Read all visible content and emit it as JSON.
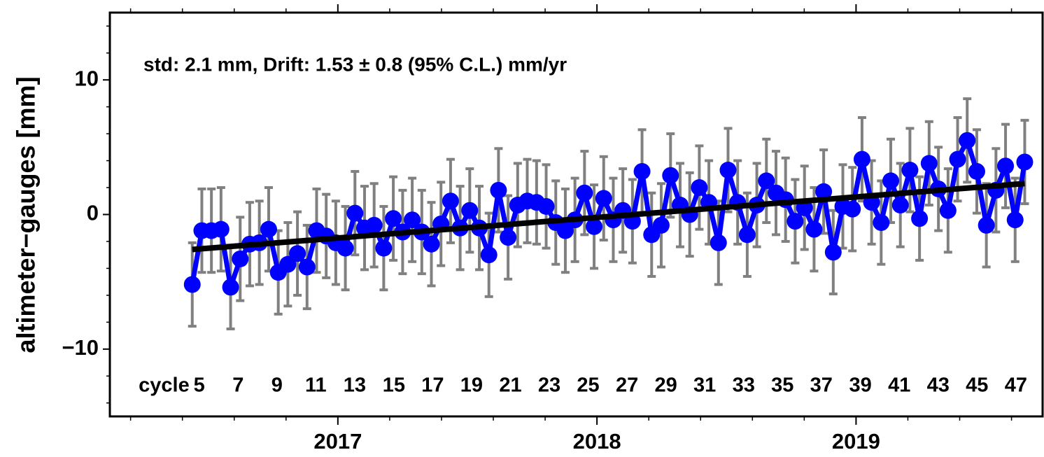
{
  "chart_data": {
    "type": "line",
    "annotation": "std: 2.1 mm,  Drift: 1.53 ±  0.8 (95% C.L.) mm/yr",
    "y_label": "altimeter−gauges [mm]",
    "xlim": [
      2016.12,
      2019.72
    ],
    "xticks": [
      2017,
      2018,
      2019
    ],
    "x_minor_ticks": [
      2016.2,
      2016.4,
      2016.6,
      2016.8,
      2017.2,
      2017.4,
      2017.6,
      2017.8,
      2018.2,
      2018.4,
      2018.6,
      2018.8,
      2019.2,
      2019.4,
      2019.6
    ],
    "ylim": [
      -15,
      15
    ],
    "yticks": [
      10,
      0,
      {
        "value": -10,
        "label": "−10"
      }
    ],
    "y_minor_ticks": [
      -14,
      -12,
      -8,
      -6,
      -4,
      -2,
      2,
      4,
      6,
      8,
      12,
      14
    ],
    "grid": false,
    "x": [
      2016.438,
      2016.475,
      2016.512,
      2016.549,
      2016.586,
      2016.623,
      2016.66,
      2016.697,
      2016.733,
      2016.77,
      2016.807,
      2016.844,
      2016.881,
      2016.918,
      2016.955,
      2016.992,
      2017.029,
      2017.066,
      2017.103,
      2017.14,
      2017.177,
      2017.214,
      2017.25,
      2017.287,
      2017.324,
      2017.361,
      2017.398,
      2017.435,
      2017.472,
      2017.509,
      2017.546,
      2017.583,
      2017.62,
      2017.657,
      2017.694,
      2017.731,
      2017.767,
      2017.804,
      2017.841,
      2017.878,
      2017.915,
      2017.952,
      2017.989,
      2018.026,
      2018.063,
      2018.1,
      2018.137,
      2018.174,
      2018.211,
      2018.248,
      2018.284,
      2018.321,
      2018.358,
      2018.395,
      2018.432,
      2018.469,
      2018.506,
      2018.543,
      2018.58,
      2018.617,
      2018.654,
      2018.691,
      2018.728,
      2018.765,
      2018.801,
      2018.838,
      2018.875,
      2018.912,
      2018.949,
      2018.986,
      2019.023,
      2019.06,
      2019.097,
      2019.134,
      2019.171,
      2019.208,
      2019.245,
      2019.282,
      2019.318,
      2019.355,
      2019.392,
      2019.429,
      2019.466,
      2019.503,
      2019.54,
      2019.577,
      2019.614,
      2019.651
    ],
    "series": [
      {
        "color": "#0000ff",
        "error_color": "#808080",
        "values": [
          -5.2,
          -1.2,
          -1.2,
          -1.1,
          -5.4,
          -3.3,
          -2.2,
          -2.1,
          -1.1,
          -4.3,
          -3.7,
          -2.9,
          -3.9,
          -1.2,
          -1.6,
          -2.1,
          -2.5,
          0.1,
          -1.0,
          -0.8,
          -2.5,
          -0.3,
          -1.3,
          -0.4,
          -1.3,
          -2.2,
          -0.7,
          1.0,
          -1.0,
          0.3,
          -1.0,
          -3.0,
          1.8,
          -1.7,
          0.7,
          1.0,
          0.9,
          0.6,
          -0.6,
          -1.2,
          -0.4,
          1.6,
          -0.9,
          1.2,
          -0.4,
          0.3,
          -0.5,
          3.2,
          -1.5,
          -0.8,
          2.9,
          0.7,
          0.0,
          2.0,
          0.9,
          -2.1,
          3.3,
          0.9,
          -1.5,
          0.7,
          2.5,
          1.6,
          1.1,
          -0.5,
          0.5,
          -1.1,
          1.7,
          -2.8,
          0.6,
          0.4,
          4.1,
          0.9,
          -0.6,
          2.5,
          0.7,
          3.3,
          -0.3,
          3.8,
          1.9,
          0.3,
          4.1,
          5.5,
          3.2,
          -0.8,
          1.8,
          3.6,
          -0.4,
          3.9
        ],
        "errors": [
          3.1,
          3.1,
          3.1,
          3.1,
          3.1,
          3.1,
          3.1,
          3.1,
          3.1,
          3.1,
          3.1,
          3.1,
          3.1,
          3.1,
          3.1,
          3.1,
          3.1,
          3.1,
          3.1,
          3.1,
          3.1,
          3.1,
          3.1,
          3.1,
          3.1,
          3.1,
          3.1,
          3.1,
          3.1,
          3.1,
          3.1,
          3.1,
          3.1,
          3.1,
          3.1,
          3.1,
          3.1,
          3.1,
          3.1,
          3.1,
          3.1,
          3.1,
          3.1,
          3.1,
          3.1,
          3.1,
          3.1,
          3.1,
          3.1,
          3.1,
          3.1,
          3.1,
          3.1,
          3.1,
          3.1,
          3.1,
          3.1,
          3.1,
          3.1,
          3.1,
          3.1,
          3.1,
          3.1,
          3.1,
          3.1,
          3.1,
          3.1,
          3.1,
          3.1,
          3.1,
          3.1,
          3.1,
          3.1,
          3.1,
          3.1,
          3.1,
          3.1,
          3.1,
          3.1,
          3.1,
          3.1,
          3.1,
          3.1,
          3.1,
          3.1,
          3.1,
          3.1,
          3.1
        ]
      }
    ],
    "trend": {
      "color": "#000000",
      "x": [
        2016.438,
        2019.651
      ],
      "values": [
        -2.6,
        2.3
      ]
    },
    "cycle_label": "cycle",
    "cycles": [
      5,
      7,
      9,
      11,
      13,
      15,
      17,
      19,
      21,
      23,
      25,
      27,
      29,
      31,
      33,
      35,
      37,
      39,
      41,
      43,
      45,
      47
    ],
    "cycle_x": [
      2016.465,
      2016.615,
      2016.765,
      2016.915,
      2017.065,
      2017.216,
      2017.366,
      2017.516,
      2017.666,
      2017.816,
      2017.966,
      2018.116,
      2018.266,
      2018.416,
      2018.566,
      2018.716,
      2018.866,
      2019.017,
      2019.167,
      2019.317,
      2019.467,
      2019.617
    ]
  }
}
